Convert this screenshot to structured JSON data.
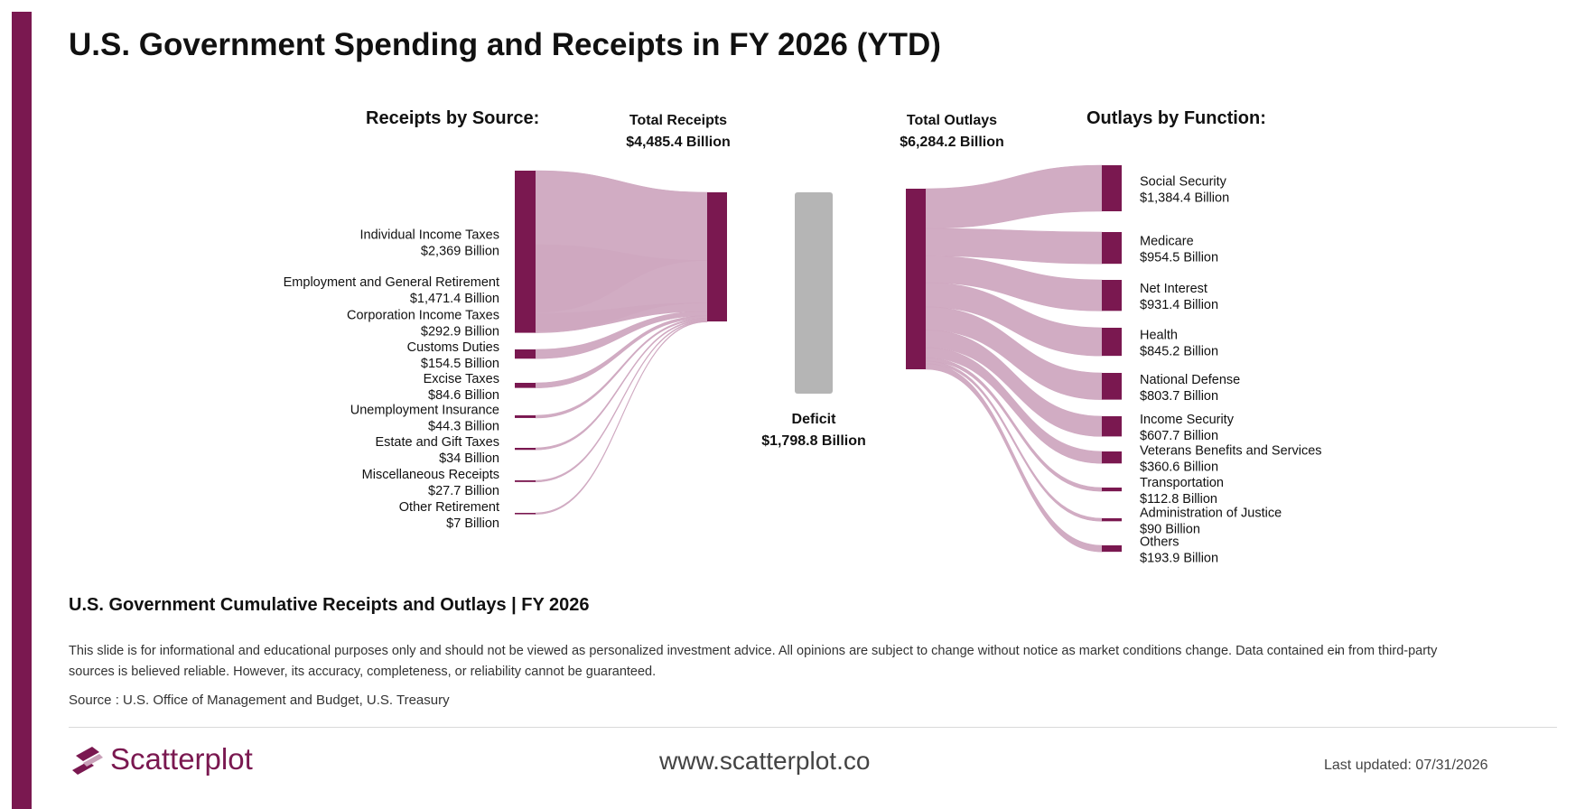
{
  "page": {
    "title": "U.S. Government Spending and Receipts in FY 2026 (YTD)",
    "subtitle": "U.S. Government Cumulative Receipts and Outlays | FY 2026",
    "disclaimer": "This slide is for informational and educational purposes only and should not be viewed as personalized investment advice. All opinions are subject to change without notice as market conditions change. Data contained ei̵n from third-party sources is believed reliable. However, its accuracy, completeness, or reliability cannot be guaranteed.",
    "source": "Source : U.S. Office of Management and Budget, U.S. Treasury",
    "brand": "Scatterplot",
    "website": "www.scatterplot.co",
    "last_updated": "Last updated: 07/31/2026"
  },
  "colors": {
    "node": "#7a1850",
    "link": "#cfa8c0",
    "deficit": "#b5b5b5",
    "accent": "#7a1850"
  },
  "chart_data": {
    "type": "sankey",
    "title": "U.S. Government Spending and Receipts in FY 2026 (YTD)",
    "receipts_heading": "Receipts by Source:",
    "outlays_heading": "Outlays by Function:",
    "total_receipts": {
      "label": "Total Receipts",
      "value_label": "$4,485.4 Billion",
      "value": 4485.4
    },
    "total_outlays": {
      "label": "Total Outlays",
      "value_label": "$6,284.2 Billion",
      "value": 6284.2
    },
    "deficit": {
      "label": "Deficit",
      "value_label": "$1,798.8 Billion",
      "value": 1798.8
    },
    "unit": "Billion USD",
    "receipts": [
      {
        "name": "Individual Income Taxes",
        "value_label": "$2,369 Billion",
        "value": 2369
      },
      {
        "name": "Employment and General Retirement",
        "value_label": "$1,471.4 Billion",
        "value": 1471.4
      },
      {
        "name": "Corporation Income Taxes",
        "value_label": "$292.9 Billion",
        "value": 292.9
      },
      {
        "name": "Customs Duties",
        "value_label": "$154.5 Billion",
        "value": 154.5
      },
      {
        "name": "Excise Taxes",
        "value_label": "$84.6 Billion",
        "value": 84.6
      },
      {
        "name": "Unemployment Insurance",
        "value_label": "$44.3 Billion",
        "value": 44.3
      },
      {
        "name": "Estate and Gift Taxes",
        "value_label": "$34 Billion",
        "value": 34
      },
      {
        "name": "Miscellaneous Receipts",
        "value_label": "$27.7 Billion",
        "value": 27.7
      },
      {
        "name": "Other Retirement",
        "value_label": "$7 Billion",
        "value": 7
      }
    ],
    "outlays": [
      {
        "name": "Social Security",
        "value_label": "$1,384.4 Billion",
        "value": 1384.4
      },
      {
        "name": "Medicare",
        "value_label": "$954.5 Billion",
        "value": 954.5
      },
      {
        "name": "Net Interest",
        "value_label": "$931.4 Billion",
        "value": 931.4
      },
      {
        "name": "Health",
        "value_label": "$845.2 Billion",
        "value": 845.2
      },
      {
        "name": "National Defense",
        "value_label": "$803.7 Billion",
        "value": 803.7
      },
      {
        "name": "Income Security",
        "value_label": "$607.7 Billion",
        "value": 607.7
      },
      {
        "name": "Veterans Benefits and Services",
        "value_label": "$360.6 Billion",
        "value": 360.6
      },
      {
        "name": "Transportation",
        "value_label": "$112.8 Billion",
        "value": 112.8
      },
      {
        "name": "Administration of Justice",
        "value_label": "$90 Billion",
        "value": 90
      },
      {
        "name": "Others",
        "value_label": "$193.9 Billion",
        "value": 193.9
      }
    ]
  }
}
